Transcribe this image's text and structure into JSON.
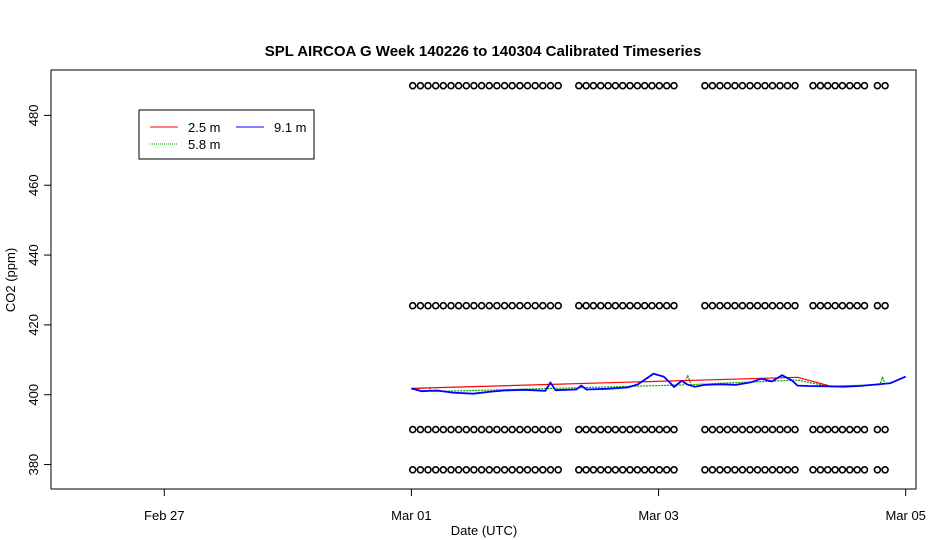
{
  "chart_data": {
    "type": "line",
    "title": "SPL AIRCOA G  Week 140226 to 140304  Calibrated Timeseries",
    "xlabel": "Date (UTC)",
    "ylabel": "CO2 (ppm)",
    "x_unit": "days (UTC)",
    "xlim": [
      "2014-02-26T02:00",
      "2014-03-05T02:00"
    ],
    "ylim": [
      373,
      493
    ],
    "x_ticks": [
      {
        "label": "Feb 27",
        "value": "2014-02-27T00:00"
      },
      {
        "label": "Mar 01",
        "value": "2014-03-01T00:00"
      },
      {
        "label": "Mar 03",
        "value": "2014-03-03T00:00"
      },
      {
        "label": "Mar 05",
        "value": "2014-03-05T00:00"
      }
    ],
    "y_ticks": [
      380,
      400,
      420,
      440,
      460,
      480
    ],
    "grid": false,
    "legend": {
      "placement": "top-left",
      "entries": [
        "2.5 m",
        "9.1 m",
        "5.8 m"
      ]
    },
    "colors": {
      "2.5 m": "#ff0000",
      "5.8 m": "#00a000",
      "9.1 m": "#0000ff",
      "calibration": "#000000"
    },
    "series": [
      {
        "name": "2.5 m",
        "points": [
          [
            "2014-03-01T00:00",
            401.8
          ],
          [
            "2014-03-04T03:00",
            405.0
          ],
          [
            "2014-03-04T09:00",
            402.6
          ]
        ]
      },
      {
        "name": "5.8 m",
        "points": [
          [
            "2014-03-01T00:00",
            401.6
          ],
          [
            "2014-03-01T03:30",
            402.0
          ],
          [
            "2014-03-01T04:00",
            400.9
          ],
          [
            "2014-03-03T05:00",
            402.8
          ],
          [
            "2014-03-03T05:40",
            405.5
          ],
          [
            "2014-03-03T06:20",
            402.9
          ],
          [
            "2014-03-04T03:00",
            404.2
          ],
          [
            "2014-03-04T09:00",
            402.4
          ],
          [
            "2014-03-04T19:00",
            402.9
          ],
          [
            "2014-03-04T19:30",
            405.0
          ],
          [
            "2014-03-04T20:00",
            403.2
          ]
        ]
      },
      {
        "name": "9.1 m",
        "points": [
          [
            "2014-03-01T00:00",
            401.8
          ],
          [
            "2014-03-01T02:00",
            401.0
          ],
          [
            "2014-03-01T05:00",
            401.2
          ],
          [
            "2014-03-01T08:00",
            400.6
          ],
          [
            "2014-03-01T12:00",
            400.3
          ],
          [
            "2014-03-01T15:00",
            400.8
          ],
          [
            "2014-03-01T18:00",
            401.2
          ],
          [
            "2014-03-01T22:00",
            401.4
          ],
          [
            "2014-03-02T02:00",
            401.1
          ],
          [
            "2014-03-02T03:00",
            403.5
          ],
          [
            "2014-03-02T04:00",
            401.3
          ],
          [
            "2014-03-02T08:00",
            401.5
          ],
          [
            "2014-03-02T09:00",
            402.6
          ],
          [
            "2014-03-02T10:00",
            401.5
          ],
          [
            "2014-03-02T14:00",
            401.7
          ],
          [
            "2014-03-02T18:00",
            402.1
          ],
          [
            "2014-03-02T20:00",
            403.0
          ],
          [
            "2014-03-02T23:00",
            406.0
          ],
          [
            "2014-03-03T01:00",
            405.2
          ],
          [
            "2014-03-03T02:00",
            403.8
          ],
          [
            "2014-03-03T03:00",
            402.2
          ],
          [
            "2014-03-03T04:30",
            404.0
          ],
          [
            "2014-03-03T05:30",
            403.0
          ],
          [
            "2014-03-03T07:00",
            402.3
          ],
          [
            "2014-03-03T09:00",
            402.8
          ],
          [
            "2014-03-03T12:00",
            403.0
          ],
          [
            "2014-03-03T15:00",
            402.8
          ],
          [
            "2014-03-03T18:00",
            403.6
          ],
          [
            "2014-03-03T20:00",
            404.6
          ],
          [
            "2014-03-03T22:00",
            403.8
          ],
          [
            "2014-03-04T00:00",
            405.6
          ],
          [
            "2014-03-04T02:00",
            404.0
          ],
          [
            "2014-03-04T03:00",
            402.6
          ],
          [
            "2014-03-04T05:00",
            402.5
          ],
          [
            "2014-03-04T09:00",
            402.4
          ],
          [
            "2014-03-04T12:00",
            402.3
          ],
          [
            "2014-03-04T15:00",
            402.5
          ],
          [
            "2014-03-04T18:00",
            402.9
          ],
          [
            "2014-03-04T21:00",
            403.3
          ],
          [
            "2014-03-05T00:00",
            405.2
          ]
        ]
      }
    ],
    "calibration_points": {
      "marker": "open circle",
      "levels": [
        488.5,
        425.5,
        390.0,
        378.5
      ],
      "segments": [
        [
          "2014-03-01T00:15",
          "2014-03-02T04:30"
        ],
        [
          "2014-03-02T08:30",
          "2014-03-03T03:00"
        ],
        [
          "2014-03-03T09:00",
          "2014-03-04T02:30"
        ],
        [
          "2014-03-04T06:00",
          "2014-03-04T16:00"
        ],
        [
          "2014-03-04T18:30",
          "2014-03-04T20:00"
        ]
      ]
    }
  }
}
